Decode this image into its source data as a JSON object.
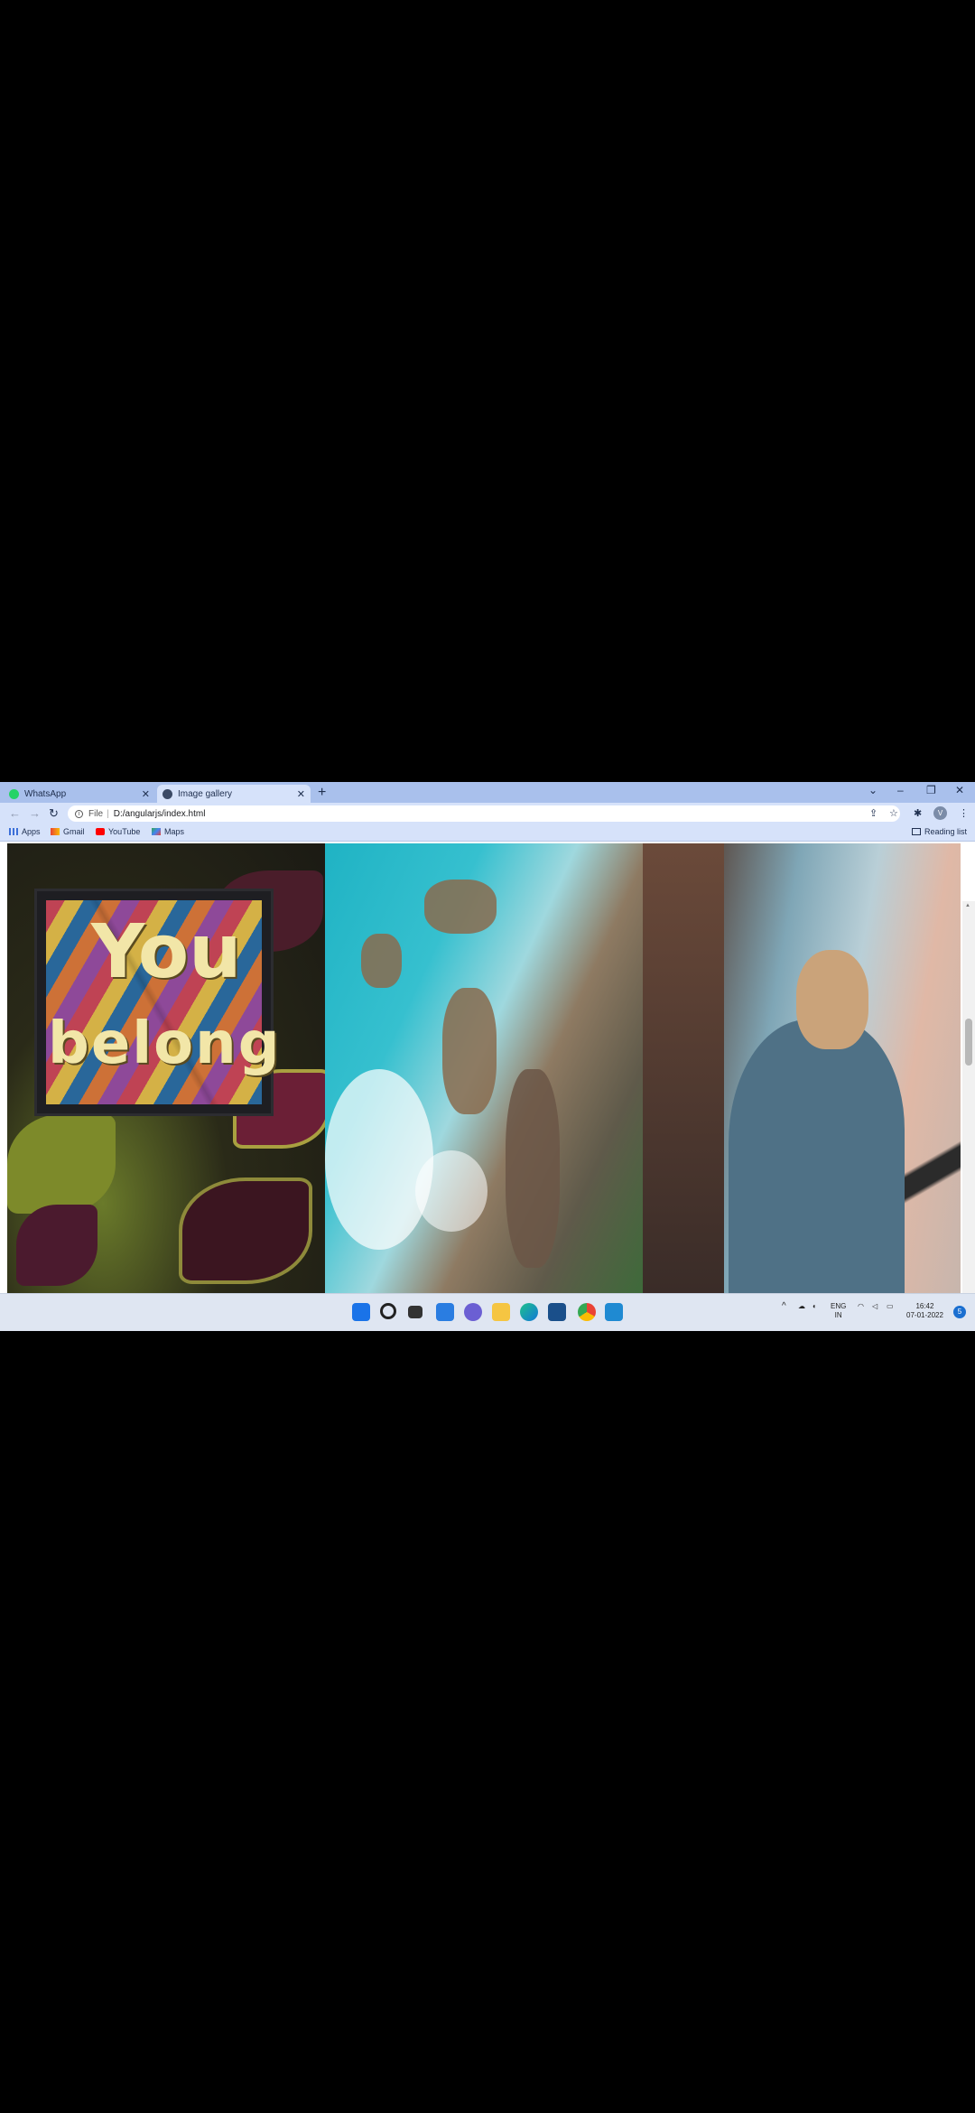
{
  "browser": {
    "tabs": [
      {
        "label": "WhatsApp",
        "favicon": "whatsapp-icon",
        "active": false
      },
      {
        "label": "Image gallery",
        "favicon": "globe-icon",
        "active": true
      }
    ],
    "new_tab_label": "+",
    "window_controls": {
      "minimize": "–",
      "restore": "❐",
      "close": "✕",
      "tab_search": "⌄"
    },
    "address": {
      "scheme": "File",
      "url": "D:/angularjs/index.html"
    },
    "bookmarks": [
      {
        "label": "Apps",
        "icon": "apps-grid-icon"
      },
      {
        "label": "Gmail",
        "icon": "gmail-icon"
      },
      {
        "label": "YouTube",
        "icon": "youtube-icon"
      },
      {
        "label": "Maps",
        "icon": "maps-icon"
      }
    ],
    "reading_list_label": "Reading list",
    "profile_initial": "V"
  },
  "gallery": {
    "images": [
      {
        "alt": "garden-sign",
        "sign_text_line1": "You",
        "sign_text_line2": "belong"
      },
      {
        "alt": "aerial-coast"
      },
      {
        "alt": "woman-denim-jacket"
      }
    ]
  },
  "taskbar": {
    "language_line1": "ENG",
    "language_line2": "IN",
    "time": "16:42",
    "date": "07-01-2022",
    "notification_count": "5"
  },
  "colors": {
    "tabstrip": "#a9c0ec",
    "toolbar": "#d6e2fa",
    "taskbar": "#dfe6f2"
  }
}
